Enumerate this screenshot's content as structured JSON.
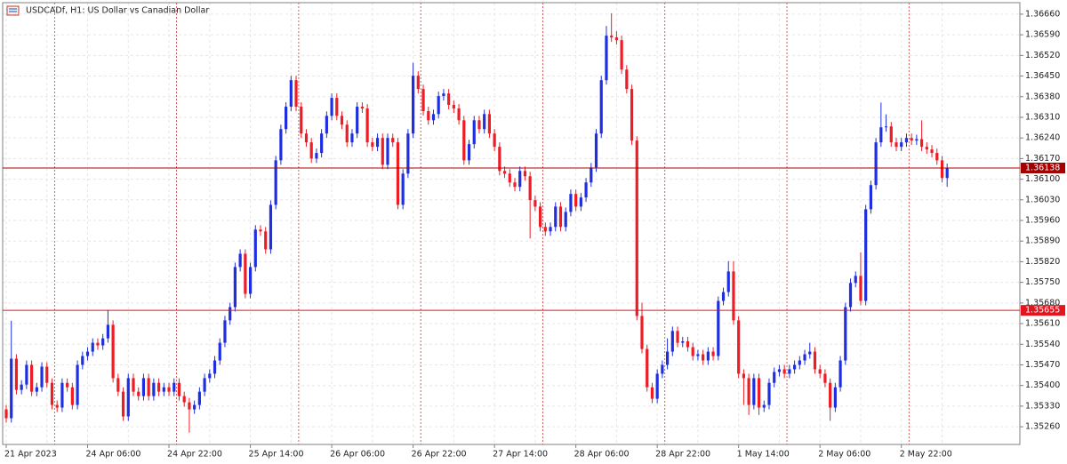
{
  "chart_data": {
    "type": "candlestick",
    "title": "USDCADf, H1:  US Dollar vs Canadian Dollar",
    "categories": [
      "21 Apr 2023",
      null,
      null,
      null,
      null,
      null,
      null,
      null,
      null,
      null,
      null,
      null,
      null,
      null,
      null,
      null,
      "24 Apr 06:00",
      null,
      null,
      null,
      null,
      null,
      null,
      null,
      null,
      null,
      null,
      null,
      null,
      null,
      null,
      null,
      "24 Apr 22:00",
      null,
      null,
      null,
      null,
      null,
      null,
      null,
      null,
      null,
      null,
      null,
      null,
      null,
      null,
      null,
      "25 Apr 14:00",
      null,
      null,
      null,
      null,
      null,
      null,
      null,
      null,
      null,
      null,
      null,
      null,
      null,
      null,
      null,
      "26 Apr 06:00",
      null,
      null,
      null,
      null,
      null,
      null,
      null,
      null,
      null,
      null,
      null,
      null,
      null,
      null,
      null,
      "26 Apr 22:00",
      null,
      null,
      null,
      null,
      null,
      null,
      null,
      null,
      null,
      null,
      null,
      null,
      null,
      null,
      null,
      "27 Apr 14:00",
      null,
      null,
      null,
      null,
      null,
      null,
      null,
      null,
      null,
      null,
      null,
      null,
      null,
      null,
      null,
      "28 Apr 06:00",
      null,
      null,
      null,
      null,
      null,
      null,
      null,
      null,
      null,
      null,
      null,
      null,
      null,
      null,
      null,
      "28 Apr 22:00",
      null,
      null,
      null,
      null,
      null,
      null,
      null,
      null,
      null,
      null,
      null,
      null,
      null,
      null,
      null,
      "1 May 14:00",
      null,
      null,
      null,
      null,
      null,
      null,
      null,
      null,
      null,
      null,
      null,
      null,
      null,
      null,
      null,
      "2 May 06:00",
      null,
      null,
      null,
      null,
      null,
      null,
      null,
      null,
      null,
      null,
      null,
      null,
      null,
      null,
      null,
      "2 May 22:00",
      null,
      null,
      null,
      null,
      null,
      null,
      null,
      null,
      null
    ],
    "open": [
      1.35319,
      1.35289,
      1.35491,
      1.35385,
      1.35403,
      1.3547,
      1.35379,
      1.35394,
      1.35464,
      1.35409,
      1.35334,
      1.35325,
      1.35409,
      1.35394,
      1.35334,
      1.3547,
      1.355,
      1.35515,
      1.35545,
      1.35536,
      1.3556,
      1.35606,
      1.35425,
      1.35379,
      1.35295,
      1.35425,
      1.35379,
      1.35364,
      1.35425,
      1.35364,
      1.35409,
      1.35379,
      1.35394,
      1.35379,
      1.35409,
      1.35364,
      1.35343,
      1.35319,
      1.35334,
      1.35379,
      1.35425,
      1.3544,
      1.35485,
      1.35545,
      1.35621,
      1.35666,
      1.35802,
      1.35847,
      1.35711,
      1.35802,
      1.35929,
      1.35923,
      1.35862,
      1.36013,
      1.36164,
      1.3627,
      1.36346,
      1.36436,
      1.36346,
      1.36255,
      1.36225,
      1.3617,
      1.36189,
      1.36255,
      1.36315,
      1.36376,
      1.36315,
      1.36285,
      1.36225,
      1.36255,
      1.36346,
      1.3634,
      1.36225,
      1.3621,
      1.3624,
      1.36149,
      1.3624,
      1.36225,
      1.36013,
      1.36119,
      1.36255,
      1.36451,
      1.36406,
      1.36331,
      1.363,
      1.36321,
      1.36382,
      1.36391,
      1.36352,
      1.3634,
      1.363,
      1.36164,
      1.36219,
      1.363,
      1.3627,
      1.36321,
      1.36255,
      1.3621,
      1.36128,
      1.36119,
      1.36089,
      1.36074,
      1.36128,
      1.3611,
      1.36029,
      1.36007,
      1.35938,
      1.35923,
      1.35938,
      1.36007,
      1.35938,
      1.35989,
      1.3605,
      1.36007,
      1.36038,
      1.36089,
      1.3614,
      1.36255,
      1.36436,
      1.36587,
      1.36581,
      1.36572,
      1.36472,
      1.36406,
      1.36231,
      1.35636,
      1.35524,
      1.35394,
      1.35355,
      1.3544,
      1.3547,
      1.35515,
      1.35585,
      1.35545,
      1.3555,
      1.3553,
      1.355,
      1.35506,
      1.35485,
      1.35515,
      1.355,
      1.35687,
      1.35717,
      1.35787,
      1.35621,
      1.3544,
      1.35425,
      1.35334,
      1.35425,
      1.35325,
      1.35334,
      1.35409,
      1.35446,
      1.35455,
      1.3544,
      1.35455,
      1.3547,
      1.35485,
      1.35506,
      1.35515,
      1.35455,
      1.3544,
      1.35409,
      1.35325,
      1.35394,
      1.35485,
      1.35666,
      1.35748,
      1.35772,
      1.35687,
      1.35998,
      1.3608,
      1.36225,
      1.36276,
      1.36279,
      1.36225,
      1.3621,
      1.36225,
      1.3624,
      1.36231,
      1.36236,
      1.3621,
      1.36201,
      1.36189,
      1.36164,
      1.36104
    ],
    "high": [
      1.35334,
      1.3562,
      1.35506,
      1.35418,
      1.35485,
      1.35485,
      1.35409,
      1.35479,
      1.35479,
      1.35424,
      1.35349,
      1.35424,
      1.35424,
      1.35409,
      1.35485,
      1.35515,
      1.3553,
      1.3556,
      1.3556,
      1.35575,
      1.35657,
      1.35621,
      1.3544,
      1.35394,
      1.3544,
      1.3544,
      1.35394,
      1.3544,
      1.3544,
      1.35424,
      1.35424,
      1.35409,
      1.35409,
      1.35424,
      1.35424,
      1.35379,
      1.35358,
      1.35349,
      1.35394,
      1.3544,
      1.35455,
      1.355,
      1.3556,
      1.35636,
      1.35681,
      1.35817,
      1.35862,
      1.35862,
      1.35817,
      1.35944,
      1.35944,
      1.35938,
      1.36028,
      1.36179,
      1.36285,
      1.36361,
      1.36451,
      1.36451,
      1.36361,
      1.3627,
      1.3624,
      1.36204,
      1.3627,
      1.3633,
      1.36391,
      1.36391,
      1.3633,
      1.363,
      1.3627,
      1.36361,
      1.36361,
      1.36355,
      1.3624,
      1.36255,
      1.36255,
      1.36255,
      1.36255,
      1.3624,
      1.36134,
      1.3627,
      1.36495,
      1.36466,
      1.36421,
      1.36346,
      1.36336,
      1.36397,
      1.36406,
      1.36406,
      1.36367,
      1.36355,
      1.36315,
      1.36234,
      1.36315,
      1.36315,
      1.36336,
      1.36336,
      1.3627,
      1.36225,
      1.36143,
      1.36134,
      1.36104,
      1.36143,
      1.36143,
      1.36125,
      1.36044,
      1.36022,
      1.35953,
      1.35953,
      1.36022,
      1.36022,
      1.36004,
      1.36065,
      1.36065,
      1.36053,
      1.36104,
      1.36155,
      1.3627,
      1.36451,
      1.3662,
      1.36663,
      1.36602,
      1.36587,
      1.36487,
      1.36421,
      1.36246,
      1.35681,
      1.35539,
      1.35409,
      1.35455,
      1.35485,
      1.3556,
      1.356,
      1.356,
      1.35565,
      1.35565,
      1.35545,
      1.35521,
      1.35521,
      1.3553,
      1.3553,
      1.35702,
      1.35732,
      1.35822,
      1.35822,
      1.35636,
      1.35455,
      1.3544,
      1.3544,
      1.3544,
      1.35349,
      1.35424,
      1.35461,
      1.3547,
      1.3547,
      1.3547,
      1.35485,
      1.355,
      1.35521,
      1.35545,
      1.3553,
      1.3547,
      1.35455,
      1.35424,
      1.35409,
      1.355,
      1.35681,
      1.35763,
      1.35787,
      1.35852,
      1.36013,
      1.36095,
      1.3624,
      1.3636,
      1.3632,
      1.36294,
      1.3624,
      1.3624,
      1.36255,
      1.36255,
      1.36251,
      1.363,
      1.36225,
      1.36216,
      1.36204,
      1.36179,
      1.36153
    ],
    "low": [
      1.35274,
      1.35274,
      1.3537,
      1.3537,
      1.35388,
      1.35364,
      1.35364,
      1.35379,
      1.35394,
      1.35319,
      1.3531,
      1.3531,
      1.35379,
      1.35319,
      1.35319,
      1.35455,
      1.35485,
      1.355,
      1.35521,
      1.35521,
      1.35545,
      1.3541,
      1.35364,
      1.3528,
      1.3528,
      1.35364,
      1.35349,
      1.35349,
      1.35349,
      1.35349,
      1.35364,
      1.35364,
      1.35364,
      1.35364,
      1.35349,
      1.35328,
      1.3524,
      1.35304,
      1.35319,
      1.35364,
      1.3541,
      1.35425,
      1.3547,
      1.3553,
      1.35606,
      1.35651,
      1.35787,
      1.35696,
      1.35696,
      1.35787,
      1.35908,
      1.35847,
      1.35847,
      1.35998,
      1.36149,
      1.36255,
      1.36331,
      1.36331,
      1.3624,
      1.3621,
      1.36155,
      1.36155,
      1.36174,
      1.3624,
      1.363,
      1.363,
      1.3627,
      1.3621,
      1.3621,
      1.3624,
      1.36325,
      1.3621,
      1.36195,
      1.36195,
      1.36134,
      1.36134,
      1.3621,
      1.35998,
      1.35998,
      1.36104,
      1.3624,
      1.36391,
      1.36316,
      1.36285,
      1.36285,
      1.36306,
      1.36367,
      1.36337,
      1.36325,
      1.36285,
      1.36149,
      1.36149,
      1.36204,
      1.36255,
      1.36255,
      1.3624,
      1.36195,
      1.36113,
      1.36104,
      1.36074,
      1.36059,
      1.36059,
      1.36095,
      1.35899,
      1.35992,
      1.35923,
      1.35908,
      1.35908,
      1.35923,
      1.35923,
      1.35923,
      1.35974,
      1.35992,
      1.35992,
      1.36023,
      1.36074,
      1.36125,
      1.3624,
      1.36421,
      1.36566,
      1.36557,
      1.36457,
      1.36391,
      1.36216,
      1.35621,
      1.35509,
      1.35379,
      1.3534,
      1.3534,
      1.35425,
      1.35455,
      1.355,
      1.3553,
      1.3553,
      1.35515,
      1.35485,
      1.35485,
      1.3547,
      1.3547,
      1.35485,
      1.35485,
      1.35672,
      1.35702,
      1.35606,
      1.35425,
      1.35334,
      1.353,
      1.35319,
      1.353,
      1.3531,
      1.35319,
      1.35394,
      1.35431,
      1.35425,
      1.35425,
      1.3544,
      1.35455,
      1.3547,
      1.35491,
      1.3544,
      1.35425,
      1.35394,
      1.3528,
      1.3531,
      1.35379,
      1.3547,
      1.35651,
      1.35733,
      1.35672,
      1.35672,
      1.35983,
      1.36065,
      1.3621,
      1.36261,
      1.3621,
      1.36195,
      1.36195,
      1.3621,
      1.36216,
      1.36216,
      1.36195,
      1.36186,
      1.36174,
      1.36149,
      1.36089,
      1.36074
    ],
    "close": [
      1.35289,
      1.35491,
      1.35385,
      1.35403,
      1.3547,
      1.35379,
      1.35394,
      1.35464,
      1.35409,
      1.35334,
      1.35325,
      1.35409,
      1.35394,
      1.35334,
      1.3547,
      1.355,
      1.35515,
      1.35545,
      1.35536,
      1.3556,
      1.35606,
      1.35425,
      1.35379,
      1.35295,
      1.35425,
      1.35379,
      1.35364,
      1.35425,
      1.35364,
      1.35409,
      1.35379,
      1.35394,
      1.35379,
      1.35409,
      1.35364,
      1.35343,
      1.35319,
      1.35334,
      1.35379,
      1.35425,
      1.3544,
      1.35485,
      1.35545,
      1.35621,
      1.35666,
      1.35802,
      1.35847,
      1.35711,
      1.35802,
      1.35929,
      1.35923,
      1.35862,
      1.36013,
      1.36164,
      1.3627,
      1.36346,
      1.36436,
      1.36346,
      1.36255,
      1.36225,
      1.3617,
      1.36189,
      1.36255,
      1.36315,
      1.36376,
      1.36315,
      1.36285,
      1.36225,
      1.36255,
      1.36346,
      1.3634,
      1.36225,
      1.3621,
      1.3624,
      1.36149,
      1.3624,
      1.36225,
      1.36013,
      1.36119,
      1.36255,
      1.36451,
      1.36406,
      1.36331,
      1.363,
      1.36321,
      1.36382,
      1.36391,
      1.36352,
      1.3634,
      1.363,
      1.36164,
      1.36219,
      1.363,
      1.3627,
      1.36321,
      1.36255,
      1.3621,
      1.36128,
      1.36119,
      1.36089,
      1.36074,
      1.36128,
      1.3611,
      1.36029,
      1.36007,
      1.35938,
      1.35923,
      1.35938,
      1.36007,
      1.35938,
      1.35989,
      1.3605,
      1.36007,
      1.36038,
      1.36089,
      1.3614,
      1.36255,
      1.36436,
      1.36587,
      1.36581,
      1.36572,
      1.36472,
      1.36406,
      1.36231,
      1.35636,
      1.35524,
      1.35394,
      1.35355,
      1.3544,
      1.3547,
      1.35515,
      1.35585,
      1.35545,
      1.3555,
      1.3553,
      1.355,
      1.35506,
      1.35485,
      1.35515,
      1.355,
      1.35687,
      1.35717,
      1.35787,
      1.35621,
      1.3544,
      1.35425,
      1.35334,
      1.35425,
      1.35325,
      1.35334,
      1.35409,
      1.35446,
      1.35455,
      1.3544,
      1.35455,
      1.3547,
      1.35485,
      1.35506,
      1.35515,
      1.35455,
      1.3544,
      1.35409,
      1.35325,
      1.35394,
      1.35485,
      1.35666,
      1.35748,
      1.35772,
      1.35687,
      1.35998,
      1.3608,
      1.36225,
      1.36276,
      1.36279,
      1.36225,
      1.3621,
      1.36225,
      1.3624,
      1.36231,
      1.36236,
      1.3621,
      1.36201,
      1.36189,
      1.36164,
      1.36104,
      1.36138
    ],
    "up_color": "#1f2fe0",
    "down_color": "#ee1c25",
    "ylim": [
      1.352,
      1.36699
    ],
    "yticks": [
      {
        "value": 1.3666,
        "label": "1.36660"
      },
      {
        "value": 1.3659,
        "label": "1.36590"
      },
      {
        "value": 1.3652,
        "label": "1.36520"
      },
      {
        "value": 1.3645,
        "label": "1.36450"
      },
      {
        "value": 1.3638,
        "label": "1.36380"
      },
      {
        "value": 1.3631,
        "label": "1.36310"
      },
      {
        "value": 1.3624,
        "label": "1.36240"
      },
      {
        "value": 1.3617,
        "label": "1.36170"
      },
      {
        "value": 1.361,
        "label": "1.36100"
      },
      {
        "value": 1.3603,
        "label": "1.36030"
      },
      {
        "value": 1.3596,
        "label": "1.35960"
      },
      {
        "value": 1.3589,
        "label": "1.35890"
      },
      {
        "value": 1.3582,
        "label": "1.35820"
      },
      {
        "value": 1.3575,
        "label": "1.35750"
      },
      {
        "value": 1.3568,
        "label": "1.35680"
      },
      {
        "value": 1.3561,
        "label": "1.35610"
      },
      {
        "value": 1.3554,
        "label": "1.35540"
      },
      {
        "value": 1.3547,
        "label": "1.35470"
      },
      {
        "value": 1.354,
        "label": "1.35400"
      },
      {
        "value": 1.3533,
        "label": "1.35330"
      },
      {
        "value": 1.3526,
        "label": "1.35260"
      }
    ],
    "grid": true,
    "price_lines": [
      {
        "value": 1.36138,
        "color": "#a50000"
      },
      {
        "value": 1.35655,
        "color": "#e3141d"
      }
    ]
  }
}
